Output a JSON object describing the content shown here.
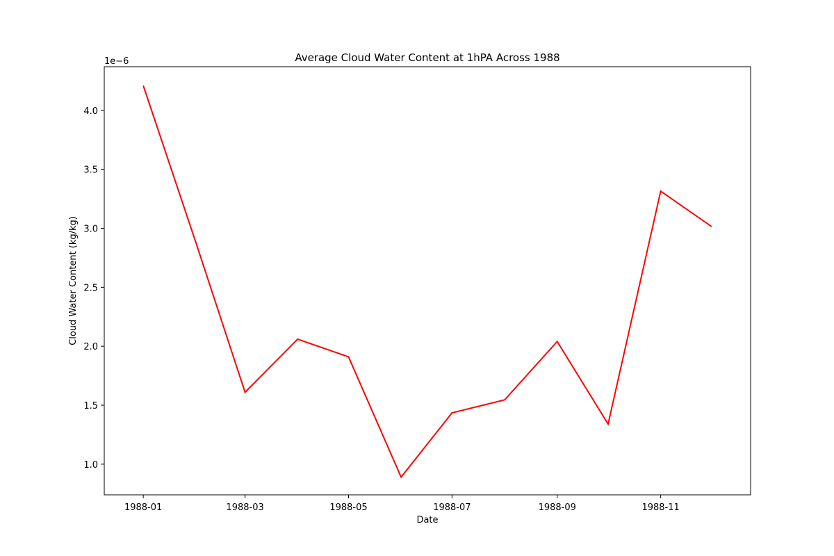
{
  "chart_data": {
    "type": "line",
    "title": "Average Cloud Water Content at 1hPA Across 1988",
    "xlabel": "Date",
    "ylabel": "Cloud Water Content (kg/kg)",
    "y_offset_text": "1e−6",
    "x_ticks": [
      "1988-01",
      "1988-03",
      "1988-05",
      "1988-07",
      "1988-09",
      "1988-11"
    ],
    "y_ticks": [
      "1.0",
      "1.5",
      "2.0",
      "2.5",
      "3.0",
      "3.5",
      "4.0"
    ],
    "y_tick_values": [
      1.0,
      1.5,
      2.0,
      2.5,
      3.0,
      3.5,
      4.0
    ],
    "y_scale": 1e-06,
    "xlim": [
      "1987-12-09",
      "1988-12-24"
    ],
    "ylim": [
      0.74,
      4.37
    ],
    "grid": false,
    "legend": "none",
    "series": [
      {
        "color": "#ff0000",
        "x": [
          "1988-01-01",
          "1988-02-01",
          "1988-03-01",
          "1988-04-01",
          "1988-05-01",
          "1988-06-01",
          "1988-07-01",
          "1988-08-01",
          "1988-09-01",
          "1988-10-01",
          "1988-11-01",
          "1988-12-01"
        ],
        "values": [
          4.21,
          2.88,
          1.61,
          2.06,
          1.91,
          0.89,
          1.435,
          1.545,
          2.04,
          1.34,
          3.315,
          3.015
        ]
      }
    ]
  }
}
